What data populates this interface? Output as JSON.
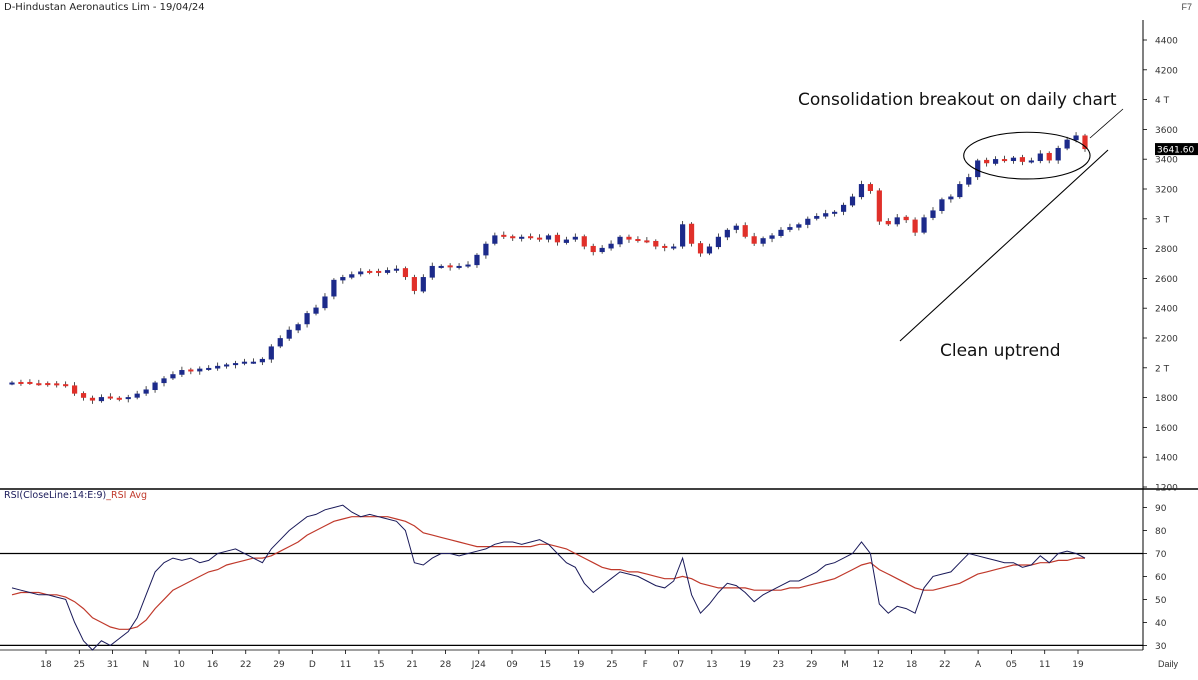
{
  "header": {
    "title": "D-Hindustan Aeronautics Lim - 19/04/24",
    "corner_mark": "F7",
    "period_label": "Daily"
  },
  "annotations": {
    "breakout": "Consolidation breakout on daily chart",
    "uptrend": "Clean uptrend"
  },
  "rsi_panel": {
    "title_main": "RSI(CloseLine:14:E:9)",
    "title_avg": "_RSI Avg"
  },
  "colors": {
    "up_candle": "#1c2a8a",
    "down_candle": "#e0302a",
    "rsi_line": "#1a1a5a",
    "rsi_avg": "#c0392b"
  },
  "chart_data": [
    {
      "type": "candlestick",
      "title": "D-Hindustan Aeronautics Lim - 19/04/24",
      "last_price_label": "3641.60",
      "ylim": [
        1200,
        4500
      ],
      "y_ticks": [
        "4400",
        "4200",
        "4 T",
        "3600",
        "3400",
        "3200",
        "3 T",
        "2800",
        "2600",
        "2400",
        "2200",
        "2 T",
        "1800",
        "1600",
        "1400",
        "1200"
      ],
      "x_ticks": [
        "18",
        "25",
        "31",
        "N",
        "10",
        "16",
        "22",
        "29",
        "D",
        "11",
        "15",
        "21",
        "28",
        "J24",
        "09",
        "15",
        "19",
        "25",
        "F",
        "07",
        "13",
        "19",
        "23",
        "29",
        "M",
        "12",
        "18",
        "22",
        "A",
        "05",
        "11",
        "19"
      ],
      "close": [
        1960,
        1960,
        1955,
        1952,
        1950,
        1948,
        1935,
        1880,
        1850,
        1830,
        1855,
        1850,
        1845,
        1855,
        1880,
        1910,
        1960,
        1990,
        2020,
        2050,
        2040,
        2060,
        2065,
        2080,
        2090,
        2100,
        2110,
        2110,
        2130,
        2220,
        2280,
        2340,
        2380,
        2460,
        2500,
        2580,
        2700,
        2720,
        2740,
        2760,
        2760,
        2750,
        2770,
        2780,
        2720,
        2620,
        2720,
        2800,
        2800,
        2790,
        2800,
        2810,
        2880,
        2960,
        3020,
        3010,
        3000,
        3010,
        3000,
        2990,
        3020,
        2970,
        2990,
        3010,
        2940,
        2900,
        2930,
        2960,
        3010,
        2990,
        2980,
        2980,
        2940,
        2930,
        2940,
        3100,
        2960,
        2890,
        2940,
        3010,
        3060,
        3090,
        3010,
        2960,
        3000,
        3020,
        3060,
        3080,
        3100,
        3140,
        3160,
        3180,
        3190,
        3240,
        3300,
        3390,
        3340,
        3120,
        3100,
        3150,
        3130,
        3040,
        3150,
        3200,
        3280,
        3300,
        3390,
        3440,
        3560,
        3540,
        3570,
        3560,
        3580,
        3550,
        3560,
        3610,
        3560,
        3650,
        3710,
        3740,
        3642
      ]
    },
    {
      "type": "line",
      "title": "RSI(CloseLine:14:E:9)_RSI Avg",
      "ylim": [
        28,
        95
      ],
      "y_ticks": [
        90,
        80,
        70,
        60,
        50,
        40,
        30
      ],
      "reference_lines": [
        70,
        30
      ],
      "series": [
        {
          "name": "RSI(CloseLine:14:E:9)",
          "values": [
            55,
            54,
            53,
            52,
            52,
            51,
            50,
            40,
            32,
            28,
            32,
            30,
            33,
            36,
            42,
            52,
            62,
            66,
            68,
            67,
            68,
            66,
            67,
            70,
            71,
            72,
            70,
            68,
            66,
            72,
            76,
            80,
            83,
            86,
            87,
            89,
            90,
            91,
            88,
            86,
            87,
            86,
            85,
            84,
            80,
            66,
            65,
            68,
            70,
            70,
            69,
            70,
            71,
            72,
            74,
            75,
            75,
            74,
            75,
            76,
            74,
            70,
            66,
            64,
            57,
            53,
            56,
            59,
            62,
            61,
            60,
            58,
            56,
            55,
            58,
            68,
            52,
            44,
            48,
            53,
            57,
            56,
            53,
            49,
            52,
            54,
            56,
            58,
            58,
            60,
            62,
            65,
            66,
            68,
            70,
            75,
            70,
            48,
            44,
            47,
            46,
            44,
            55,
            60,
            61,
            62,
            66,
            70,
            69,
            68,
            67,
            66,
            66,
            64,
            65,
            69,
            66,
            70,
            71,
            70,
            68
          ]
        },
        {
          "name": "_RSI Avg",
          "values": [
            52,
            53,
            53,
            53,
            52,
            52,
            51,
            49,
            46,
            42,
            40,
            38,
            37,
            37,
            38,
            41,
            46,
            50,
            54,
            56,
            58,
            60,
            62,
            63,
            65,
            66,
            67,
            68,
            68,
            69,
            71,
            73,
            75,
            78,
            80,
            82,
            84,
            85,
            86,
            86,
            86,
            86,
            86,
            85,
            84,
            82,
            79,
            78,
            77,
            76,
            75,
            74,
            73,
            73,
            73,
            73,
            73,
            73,
            73,
            74,
            74,
            73,
            72,
            70,
            68,
            66,
            64,
            63,
            63,
            62,
            62,
            61,
            60,
            59,
            59,
            60,
            59,
            57,
            56,
            55,
            55,
            55,
            55,
            54,
            54,
            54,
            54,
            55,
            55,
            56,
            57,
            58,
            59,
            61,
            63,
            65,
            66,
            63,
            61,
            59,
            57,
            55,
            54,
            54,
            55,
            56,
            57,
            59,
            61,
            62,
            63,
            64,
            65,
            65,
            65,
            66,
            66,
            67,
            67,
            68,
            68
          ]
        }
      ]
    }
  ]
}
